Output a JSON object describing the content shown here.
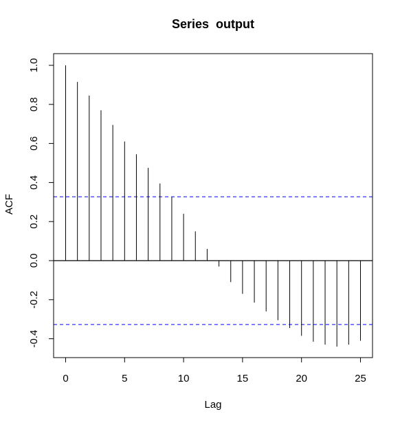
{
  "chart_data": {
    "type": "bar",
    "subtype": "acf-correlogram",
    "title": "Series  output",
    "xlabel": "Lag",
    "ylabel": "ACF",
    "x": [
      0,
      1,
      2,
      3,
      4,
      5,
      6,
      7,
      8,
      9,
      10,
      11,
      12,
      13,
      14,
      15,
      16,
      17,
      18,
      19,
      20,
      21,
      22,
      23,
      24,
      25
    ],
    "values": [
      1.0,
      0.915,
      0.845,
      0.77,
      0.695,
      0.61,
      0.545,
      0.475,
      0.395,
      0.325,
      0.24,
      0.15,
      0.06,
      -0.03,
      -0.11,
      -0.17,
      -0.215,
      -0.26,
      -0.305,
      -0.345,
      -0.385,
      -0.415,
      -0.43,
      -0.44,
      -0.43,
      -0.41
    ],
    "confidence_bound": 0.327,
    "xlim": [
      -1,
      26
    ],
    "ylim": [
      -0.5,
      1.05
    ],
    "x_ticks": [
      0,
      5,
      10,
      15,
      20,
      25
    ],
    "x_tick_labels": [
      "0",
      "5",
      "10",
      "15",
      "20",
      "25"
    ],
    "y_ticks": [
      -0.4,
      -0.2,
      0.0,
      0.2,
      0.4,
      0.6,
      0.8,
      1.0
    ],
    "y_tick_labels": [
      "-0.4",
      "-0.2",
      "0.0",
      "0.2",
      "0.4",
      "0.6",
      "0.8",
      "1.0"
    ],
    "colors": {
      "bars": "#000000",
      "confidence": "#0000ff",
      "zero_line": "#000000"
    },
    "grid": false
  }
}
